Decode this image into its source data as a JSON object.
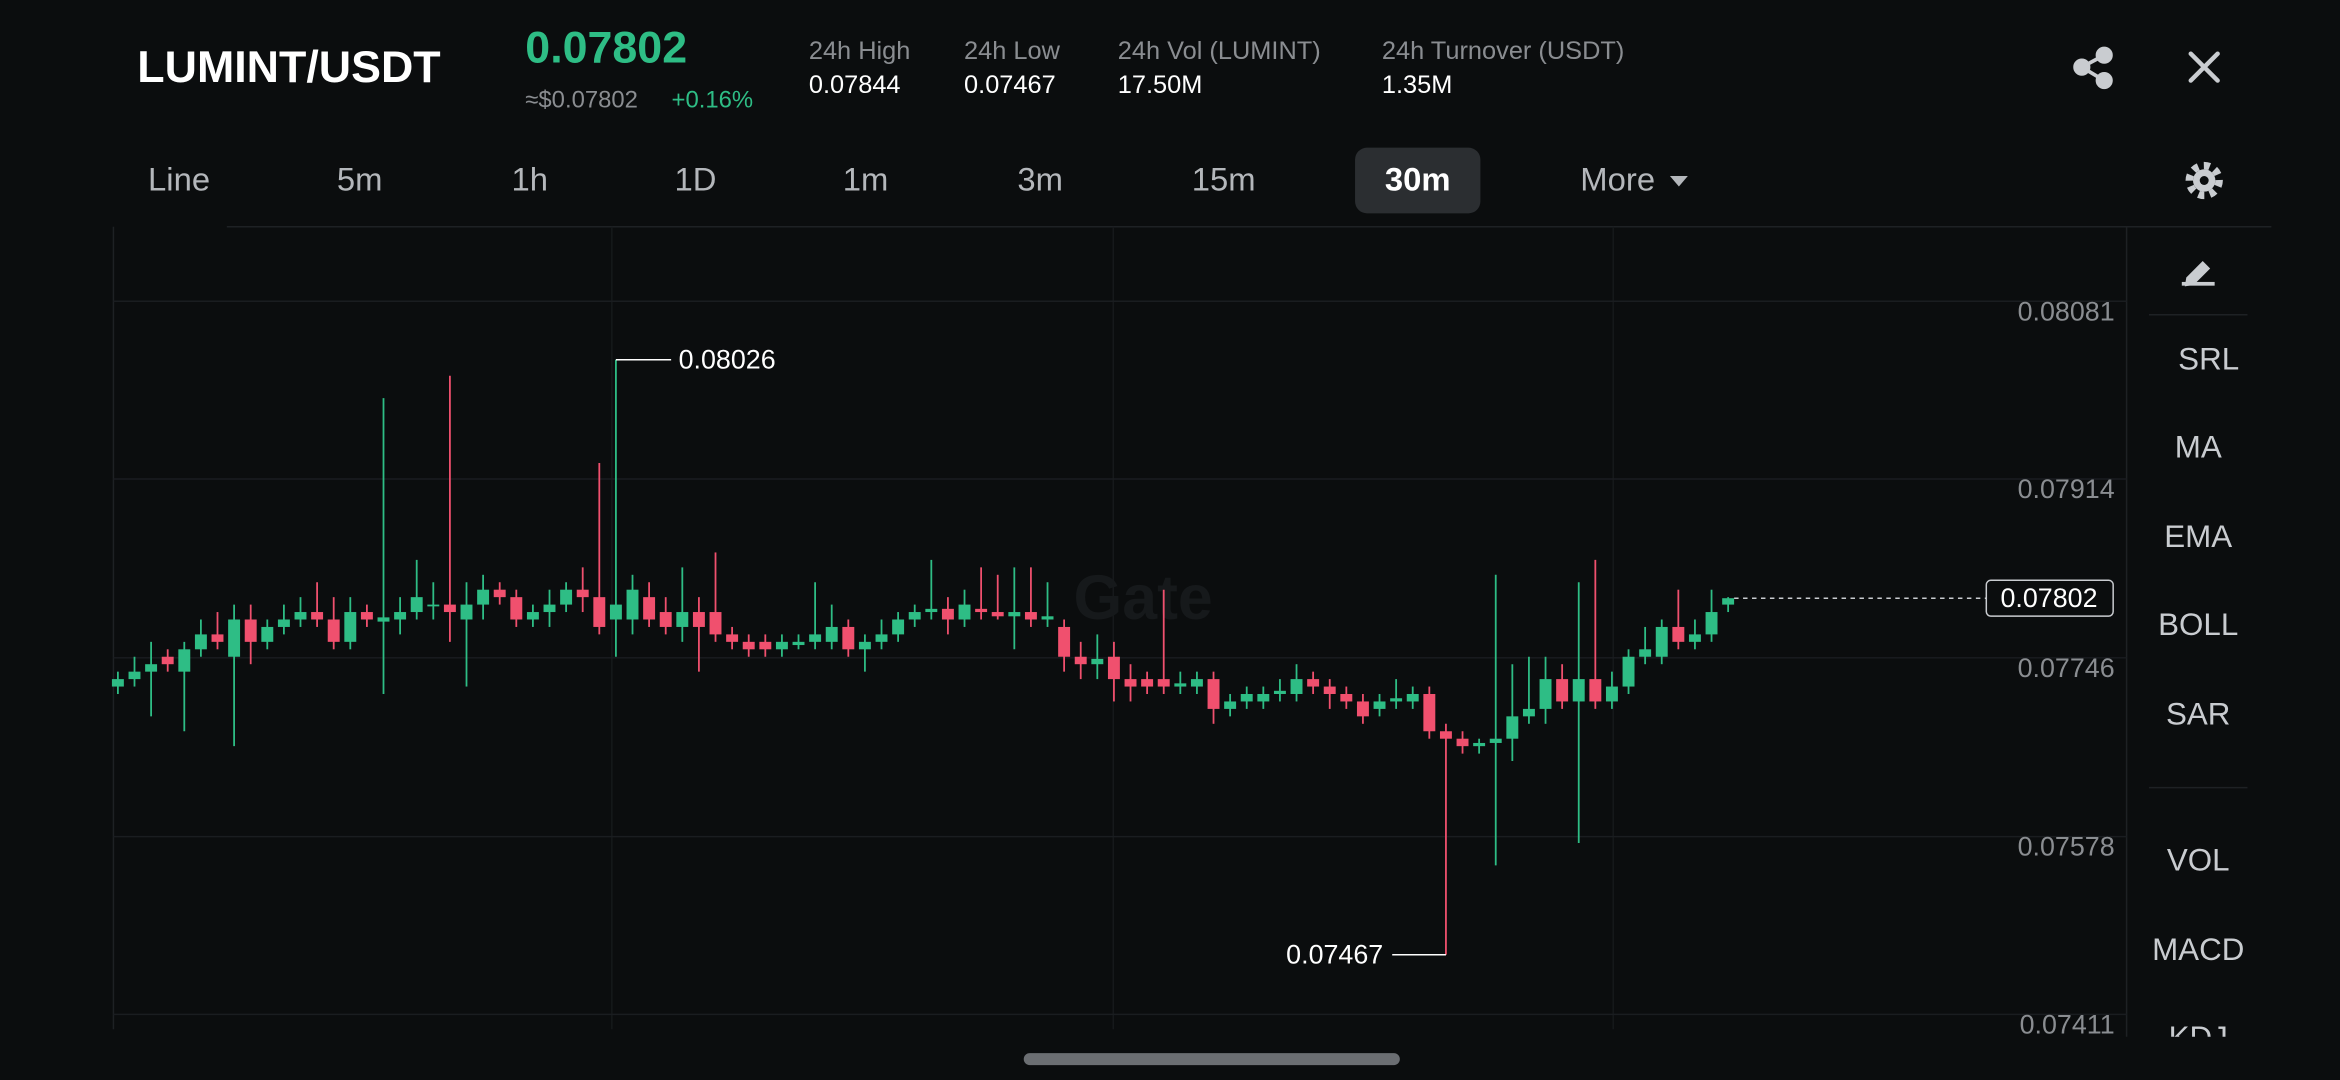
{
  "header": {
    "pair": "LUMINT/USDT",
    "price": "0.07802",
    "usd_price": "≈$0.07802",
    "change": "+0.16%",
    "stats": [
      {
        "label": "24h High",
        "value": "0.07844"
      },
      {
        "label": "24h Low",
        "value": "0.07467"
      },
      {
        "label": "24h Vol (LUMINT)",
        "value": "17.50M"
      },
      {
        "label": "24h Turnover (USDT)",
        "value": "1.35M"
      }
    ]
  },
  "intervals": [
    {
      "label": "Line"
    },
    {
      "label": "5m"
    },
    {
      "label": "1h"
    },
    {
      "label": "1D"
    },
    {
      "label": "1m"
    },
    {
      "label": "3m"
    },
    {
      "label": "15m"
    },
    {
      "label": "30m",
      "selected": true
    },
    {
      "label": "More"
    }
  ],
  "indicators": [
    "SRL",
    "MA",
    "EMA",
    "BOLL",
    "SAR",
    "VOL",
    "MACD",
    "KDJ"
  ],
  "watermark": "Gate",
  "chart_data": {
    "type": "candlestick",
    "up_color": "#2ebd85",
    "down_color": "#f0506e",
    "grid": true,
    "ylim": [
      0.07397,
      0.08151
    ],
    "yticks": [
      0.08081,
      0.07914,
      0.07746,
      0.07578,
      0.07411
    ],
    "high_label_index": 30,
    "low_label_index": 80,
    "open": [
      0.07719,
      0.07726,
      0.07733,
      0.07747,
      0.07733,
      0.07754,
      0.07768,
      0.07747,
      0.07782,
      0.07761,
      0.07775,
      0.07782,
      0.07789,
      0.07782,
      0.07761,
      0.07789,
      0.0778,
      0.07782,
      0.07789,
      0.07796,
      0.07796,
      0.07782,
      0.07796,
      0.0781,
      0.07803,
      0.07782,
      0.07789,
      0.07796,
      0.0781,
      0.07803,
      0.07782,
      0.07782,
      0.07803,
      0.07789,
      0.07775,
      0.07789,
      0.07789,
      0.07768,
      0.07761,
      0.07761,
      0.07754,
      0.07758,
      0.07761,
      0.07761,
      0.07775,
      0.07754,
      0.07761,
      0.07768,
      0.07782,
      0.07789,
      0.07792,
      0.07782,
      0.07792,
      0.07789,
      0.07785,
      0.07789,
      0.07782,
      0.07775,
      0.07747,
      0.0774,
      0.07747,
      0.07726,
      0.07726,
      0.07726,
      0.07719,
      0.07719,
      0.07726,
      0.07698,
      0.07705,
      0.07705,
      0.07712,
      0.07712,
      0.07726,
      0.07719,
      0.07712,
      0.07705,
      0.07698,
      0.07705,
      0.07705,
      0.07712,
      0.07677,
      0.0767,
      0.07663,
      0.07666,
      0.0767,
      0.07691,
      0.07698,
      0.07726,
      0.07705,
      0.07726,
      0.07705,
      0.07719,
      0.07747,
      0.07747,
      0.07775,
      0.07761,
      0.07768,
      0.07796
    ],
    "high": [
      0.07733,
      0.07747,
      0.07761,
      0.07754,
      0.07761,
      0.07782,
      0.07789,
      0.07796,
      0.07796,
      0.07782,
      0.07796,
      0.07803,
      0.07817,
      0.07803,
      0.07803,
      0.07796,
      0.0799,
      0.07803,
      0.07838,
      0.07817,
      0.08011,
      0.07817,
      0.07824,
      0.07817,
      0.0781,
      0.07796,
      0.0781,
      0.07817,
      0.07831,
      0.07929,
      0.08026,
      0.07824,
      0.07817,
      0.07803,
      0.07831,
      0.07803,
      0.07845,
      0.07775,
      0.07768,
      0.07768,
      0.07768,
      0.07768,
      0.07817,
      0.07796,
      0.07782,
      0.07768,
      0.07782,
      0.07789,
      0.07796,
      0.07838,
      0.07803,
      0.0781,
      0.07831,
      0.07824,
      0.07831,
      0.07831,
      0.07817,
      0.07782,
      0.07761,
      0.07768,
      0.07761,
      0.0774,
      0.07733,
      0.0781,
      0.07733,
      0.07733,
      0.07733,
      0.07712,
      0.07719,
      0.07719,
      0.07726,
      0.0774,
      0.07733,
      0.07726,
      0.07719,
      0.07712,
      0.07712,
      0.07726,
      0.07719,
      0.07719,
      0.07684,
      0.07677,
      0.0767,
      0.07824,
      0.0774,
      0.07747,
      0.07747,
      0.0774,
      0.07817,
      0.07838,
      0.07733,
      0.07754,
      0.07775,
      0.07782,
      0.0781,
      0.07782,
      0.0781,
      0.07803
    ],
    "low": [
      0.07712,
      0.07719,
      0.07691,
      0.07733,
      0.07677,
      0.07747,
      0.07754,
      0.07663,
      0.0774,
      0.07754,
      0.07768,
      0.07775,
      0.07775,
      0.07754,
      0.07754,
      0.07775,
      0.07712,
      0.07768,
      0.07782,
      0.07782,
      0.07761,
      0.07719,
      0.07782,
      0.07796,
      0.07775,
      0.07775,
      0.07775,
      0.07789,
      0.07789,
      0.07768,
      0.07747,
      0.07768,
      0.07775,
      0.07768,
      0.07761,
      0.07733,
      0.07761,
      0.07754,
      0.07747,
      0.07747,
      0.07747,
      0.07754,
      0.07754,
      0.07754,
      0.07747,
      0.07733,
      0.07754,
      0.07761,
      0.07775,
      0.07782,
      0.07768,
      0.07775,
      0.07782,
      0.07782,
      0.07754,
      0.07775,
      0.07775,
      0.07733,
      0.07726,
      0.07726,
      0.07705,
      0.07705,
      0.07712,
      0.07712,
      0.07712,
      0.07712,
      0.07684,
      0.07691,
      0.07698,
      0.07698,
      0.07705,
      0.07705,
      0.07712,
      0.07698,
      0.07698,
      0.07684,
      0.07691,
      0.07698,
      0.07698,
      0.0767,
      0.07467,
      0.07656,
      0.07656,
      0.07551,
      0.07649,
      0.07684,
      0.07684,
      0.07698,
      0.07572,
      0.07698,
      0.07698,
      0.07712,
      0.0774,
      0.0774,
      0.07754,
      0.07754,
      0.07761,
      0.07789
    ],
    "close": [
      0.07726,
      0.07733,
      0.0774,
      0.0774,
      0.07754,
      0.07768,
      0.07761,
      0.07782,
      0.07761,
      0.07775,
      0.07782,
      0.07789,
      0.07782,
      0.07761,
      0.07789,
      0.07782,
      0.07784,
      0.07789,
      0.07803,
      0.07796,
      0.07789,
      0.07796,
      0.0781,
      0.07803,
      0.07782,
      0.07789,
      0.07796,
      0.0781,
      0.07803,
      0.07775,
      0.07796,
      0.0781,
      0.07782,
      0.07775,
      0.07789,
      0.07775,
      0.07768,
      0.07761,
      0.07754,
      0.07754,
      0.07761,
      0.07761,
      0.07768,
      0.07775,
      0.07754,
      0.07761,
      0.07768,
      0.07782,
      0.07789,
      0.07792,
      0.07782,
      0.07796,
      0.07789,
      0.07785,
      0.07789,
      0.07782,
      0.07785,
      0.07747,
      0.0774,
      0.07745,
      0.07726,
      0.07719,
      0.07719,
      0.07719,
      0.07722,
      0.07726,
      0.07698,
      0.07705,
      0.07712,
      0.07712,
      0.07715,
      0.07726,
      0.07719,
      0.07712,
      0.07705,
      0.07691,
      0.07705,
      0.07708,
      0.07712,
      0.07677,
      0.0767,
      0.07663,
      0.07666,
      0.0767,
      0.07691,
      0.07698,
      0.07726,
      0.07705,
      0.07726,
      0.07705,
      0.07719,
      0.07747,
      0.07754,
      0.07775,
      0.07761,
      0.07768,
      0.07789,
      0.07802
    ]
  }
}
